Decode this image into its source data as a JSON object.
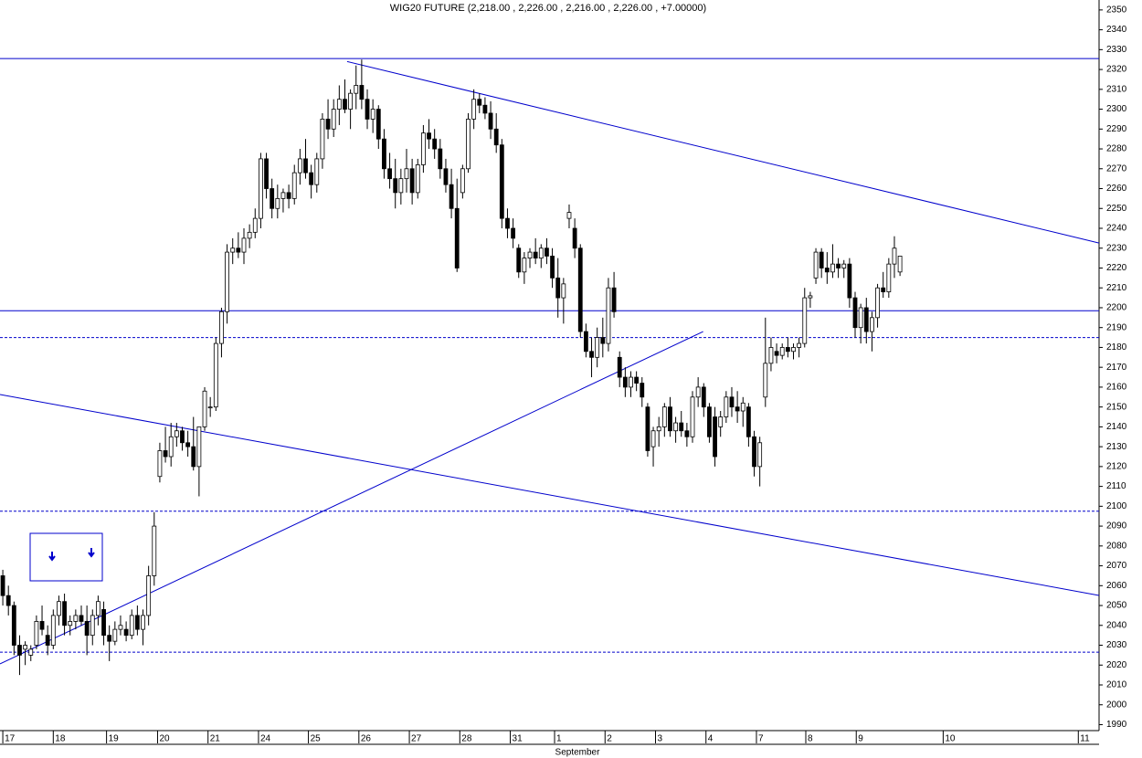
{
  "chart_data": {
    "type": "candlestick",
    "title": "WIG20 FUTURE (2,218.00 , 2,226.00 , 2,216.00 , 2,226.00 , +7.00000)",
    "x_label": "September",
    "xlim": [
      -0.5,
      195.5
    ],
    "ylim": [
      1987,
      2355
    ],
    "yticks": [
      1990,
      2000,
      2010,
      2020,
      2030,
      2040,
      2050,
      2060,
      2070,
      2080,
      2090,
      2100,
      2110,
      2120,
      2130,
      2140,
      2150,
      2160,
      2170,
      2180,
      2190,
      2200,
      2210,
      2220,
      2230,
      2240,
      2250,
      2260,
      2270,
      2280,
      2290,
      2300,
      2310,
      2320,
      2330,
      2340,
      2350
    ],
    "xticks": [
      {
        "value": 0,
        "label": "17"
      },
      {
        "value": 9,
        "label": "18"
      },
      {
        "value": 18.5,
        "label": "19"
      },
      {
        "value": 27.6,
        "label": "20"
      },
      {
        "value": 36.6,
        "label": "21"
      },
      {
        "value": 45.6,
        "label": "24"
      },
      {
        "value": 54.5,
        "label": "25"
      },
      {
        "value": 63.5,
        "label": "26"
      },
      {
        "value": 72.5,
        "label": "27"
      },
      {
        "value": 81.5,
        "label": "28"
      },
      {
        "value": 90.5,
        "label": "31"
      },
      {
        "value": 98.4,
        "label": "1"
      },
      {
        "value": 107.4,
        "label": "2"
      },
      {
        "value": 116.4,
        "label": "3"
      },
      {
        "value": 125.4,
        "label": "4"
      },
      {
        "value": 134.4,
        "label": "7"
      },
      {
        "value": 143.2,
        "label": "8"
      },
      {
        "value": 152.2,
        "label": "9"
      },
      {
        "value": 167.7,
        "label": "10"
      },
      {
        "value": 191.8,
        "label": "11"
      }
    ],
    "up_color": "#ffffff",
    "down_color": "#000000",
    "line_color": "#0000cc",
    "hlines": [
      {
        "value": 2325.5,
        "dashed": false
      },
      {
        "value": 2198.5,
        "dashed": false
      },
      {
        "value": 2185,
        "dashed": true
      },
      {
        "value": 2097.5,
        "dashed": true
      },
      {
        "value": 2026.5,
        "dashed": true
      }
    ],
    "trendlines": [
      [
        [
          61.4,
          2324
        ],
        [
          195.5,
          2232.6
        ]
      ],
      [
        [
          -0.5,
          2156.3
        ],
        [
          195.5,
          2055.1
        ]
      ],
      [
        [
          -0.5,
          2020.6
        ],
        [
          124.9,
          2188
        ]
      ]
    ],
    "candles": [
      [
        2065,
        2068,
        2050,
        2055
      ],
      [
        2055,
        2060,
        2045,
        2050
      ],
      [
        2050,
        2052,
        2025,
        2030
      ],
      [
        2030,
        2035,
        2015,
        2025
      ],
      [
        2028,
        2032,
        2020,
        2030
      ],
      [
        2025,
        2030,
        2022,
        2028
      ],
      [
        2030,
        2045,
        2028,
        2042
      ],
      [
        2042,
        2050,
        2035,
        2038
      ],
      [
        2035,
        2040,
        2025,
        2030
      ],
      [
        2030,
        2048,
        2028,
        2045
      ],
      [
        2045,
        2055,
        2040,
        2052
      ],
      [
        2052,
        2056,
        2035,
        2040
      ],
      [
        2040,
        2045,
        2035,
        2042
      ],
      [
        2042,
        2048,
        2038,
        2045
      ],
      [
        2045,
        2050,
        2040,
        2042
      ],
      [
        2042,
        2050,
        2025,
        2035
      ],
      [
        2035,
        2048,
        2030,
        2045
      ],
      [
        2045,
        2055,
        2040,
        2052
      ],
      [
        2048,
        2052,
        2030,
        2035
      ],
      [
        2035,
        2040,
        2022,
        2032
      ],
      [
        2032,
        2042,
        2030,
        2038
      ],
      [
        2038,
        2045,
        2035,
        2040
      ],
      [
        2038,
        2042,
        2032,
        2035
      ],
      [
        2035,
        2048,
        2033,
        2045
      ],
      [
        2045,
        2050,
        2035,
        2038
      ],
      [
        2038,
        2048,
        2030,
        2045
      ],
      [
        2045,
        2070,
        2040,
        2065
      ],
      [
        2065,
        2097,
        2060,
        2090
      ],
      [
        2115,
        2132,
        2112,
        2128
      ],
      [
        2128,
        2140,
        2122,
        2125
      ],
      [
        2125,
        2142,
        2120,
        2135
      ],
      [
        2135,
        2142,
        2130,
        2138
      ],
      [
        2138,
        2140,
        2128,
        2132
      ],
      [
        2132,
        2138,
        2125,
        2130
      ],
      [
        2130,
        2145,
        2118,
        2120
      ],
      [
        2120,
        2140,
        2105,
        2140
      ],
      [
        2140,
        2160,
        2138,
        2158
      ],
      [
        2150,
        2155,
        2145,
        2150
      ],
      [
        2150,
        2185,
        2148,
        2182
      ],
      [
        2182,
        2200,
        2175,
        2198
      ],
      [
        2198,
        2232,
        2192,
        2228
      ],
      [
        2228,
        2235,
        2222,
        2230
      ],
      [
        2230,
        2238,
        2225,
        2228
      ],
      [
        2228,
        2240,
        2222,
        2235
      ],
      [
        2235,
        2242,
        2230,
        2238
      ],
      [
        2238,
        2250,
        2235,
        2245
      ],
      [
        2245,
        2278,
        2240,
        2275
      ],
      [
        2275,
        2278,
        2255,
        2260
      ],
      [
        2260,
        2265,
        2245,
        2250
      ],
      [
        2250,
        2262,
        2245,
        2255
      ],
      [
        2255,
        2260,
        2248,
        2258
      ],
      [
        2258,
        2262,
        2250,
        2255
      ],
      [
        2255,
        2272,
        2252,
        2268
      ],
      [
        2268,
        2280,
        2262,
        2275
      ],
      [
        2275,
        2285,
        2265,
        2268
      ],
      [
        2268,
        2272,
        2255,
        2262
      ],
      [
        2262,
        2278,
        2258,
        2275
      ],
      [
        2275,
        2298,
        2270,
        2295
      ],
      [
        2295,
        2305,
        2285,
        2290
      ],
      [
        2290,
        2305,
        2286,
        2300
      ],
      [
        2300,
        2312,
        2292,
        2305
      ],
      [
        2305,
        2315,
        2298,
        2300
      ],
      [
        2300,
        2310,
        2290,
        2308
      ],
      [
        2308,
        2322,
        2300,
        2312
      ],
      [
        2312,
        2325,
        2300,
        2305
      ],
      [
        2305,
        2310,
        2290,
        2295
      ],
      [
        2295,
        2305,
        2288,
        2300
      ],
      [
        2300,
        2302,
        2280,
        2285
      ],
      [
        2285,
        2290,
        2265,
        2270
      ],
      [
        2270,
        2278,
        2260,
        2265
      ],
      [
        2265,
        2275,
        2250,
        2258
      ],
      [
        2258,
        2270,
        2252,
        2265
      ],
      [
        2265,
        2280,
        2258,
        2270
      ],
      [
        2270,
        2275,
        2252,
        2258
      ],
      [
        2258,
        2275,
        2255,
        2272
      ],
      [
        2272,
        2292,
        2268,
        2288
      ],
      [
        2288,
        2295,
        2280,
        2285
      ],
      [
        2285,
        2290,
        2275,
        2280
      ],
      [
        2280,
        2285,
        2265,
        2270
      ],
      [
        2270,
        2275,
        2258,
        2262
      ],
      [
        2262,
        2270,
        2245,
        2250
      ],
      [
        2250,
        2265,
        2218,
        2220
      ],
      [
        2258,
        2272,
        2255,
        2270
      ],
      [
        2270,
        2298,
        2268,
        2295
      ],
      [
        2295,
        2310,
        2290,
        2305
      ],
      [
        2305,
        2308,
        2298,
        2302
      ],
      [
        2302,
        2306,
        2295,
        2298
      ],
      [
        2298,
        2304,
        2285,
        2290
      ],
      [
        2290,
        2298,
        2278,
        2282
      ],
      [
        2282,
        2285,
        2240,
        2245
      ],
      [
        2245,
        2250,
        2235,
        2240
      ],
      [
        2240,
        2245,
        2230,
        2235
      ],
      [
        2230,
        2232,
        2215,
        2218
      ],
      [
        2218,
        2228,
        2212,
        2225
      ],
      [
        2225,
        2230,
        2220,
        2228
      ],
      [
        2228,
        2235,
        2222,
        2225
      ],
      [
        2225,
        2232,
        2220,
        2230
      ],
      [
        2230,
        2235,
        2222,
        2226
      ],
      [
        2226,
        2230,
        2210,
        2215
      ],
      [
        2215,
        2225,
        2195,
        2205
      ],
      [
        2205,
        2215,
        2192,
        2212
      ],
      [
        2245,
        2252,
        2240,
        2248
      ],
      [
        2240,
        2245,
        2225,
        2230
      ],
      [
        2230,
        2232,
        2185,
        2188
      ],
      [
        2188,
        2192,
        2175,
        2178
      ],
      [
        2178,
        2185,
        2165,
        2175
      ],
      [
        2175,
        2190,
        2170,
        2185
      ],
      [
        2185,
        2195,
        2175,
        2182
      ],
      [
        2182,
        2215,
        2178,
        2210
      ],
      [
        2210,
        2218,
        2195,
        2198
      ],
      [
        2175,
        2178,
        2160,
        2165
      ],
      [
        2165,
        2170,
        2155,
        2160
      ],
      [
        2160,
        2168,
        2155,
        2165
      ],
      [
        2165,
        2168,
        2158,
        2162
      ],
      [
        2162,
        2165,
        2150,
        2155
      ],
      [
        2150,
        2152,
        2125,
        2128
      ],
      [
        2130,
        2140,
        2120,
        2138
      ],
      [
        2138,
        2145,
        2130,
        2140
      ],
      [
        2140,
        2152,
        2135,
        2150
      ],
      [
        2150,
        2155,
        2135,
        2138
      ],
      [
        2138,
        2145,
        2132,
        2142
      ],
      [
        2142,
        2148,
        2135,
        2138
      ],
      [
        2138,
        2142,
        2130,
        2135
      ],
      [
        2135,
        2158,
        2132,
        2155
      ],
      [
        2155,
        2165,
        2150,
        2160
      ],
      [
        2160,
        2162,
        2145,
        2150
      ],
      [
        2150,
        2152,
        2132,
        2135
      ],
      [
        2145,
        2150,
        2120,
        2125
      ],
      [
        2140,
        2148,
        2135,
        2145
      ],
      [
        2145,
        2158,
        2142,
        2155
      ],
      [
        2155,
        2160,
        2145,
        2150
      ],
      [
        2150,
        2158,
        2142,
        2148
      ],
      [
        2148,
        2155,
        2140,
        2152
      ],
      [
        2150,
        2152,
        2130,
        2135
      ],
      [
        2135,
        2138,
        2115,
        2120
      ],
      [
        2120,
        2135,
        2110,
        2132
      ],
      [
        2155,
        2195,
        2150,
        2172
      ],
      [
        2172,
        2185,
        2168,
        2180
      ],
      [
        2178,
        2182,
        2172,
        2176
      ],
      [
        2176,
        2182,
        2174,
        2180
      ],
      [
        2180,
        2185,
        2175,
        2178
      ],
      [
        2178,
        2182,
        2174,
        2180
      ],
      [
        2180,
        2185,
        2175,
        2182
      ],
      [
        2182,
        2210,
        2180,
        2205
      ],
      [
        2205,
        2208,
        2200,
        2206
      ],
      [
        2215,
        2230,
        2212,
        2228
      ],
      [
        2228,
        2230,
        2215,
        2220
      ],
      [
        2220,
        2228,
        2212,
        2218
      ],
      [
        2218,
        2232,
        2215,
        2222
      ],
      [
        2222,
        2225,
        2215,
        2220
      ],
      [
        2220,
        2224,
        2215,
        2222
      ],
      [
        2222,
        2225,
        2200,
        2205
      ],
      [
        2205,
        2208,
        2185,
        2190
      ],
      [
        2190,
        2202,
        2182,
        2200
      ],
      [
        2200,
        2205,
        2182,
        2188
      ],
      [
        2188,
        2198,
        2178,
        2195
      ],
      [
        2195,
        2212,
        2190,
        2210
      ],
      [
        2210,
        2218,
        2205,
        2208
      ],
      [
        2208,
        2225,
        2205,
        2222
      ],
      [
        2222,
        2236,
        2215,
        2230
      ],
      [
        2218,
        2226,
        2216,
        2226
      ]
    ]
  }
}
